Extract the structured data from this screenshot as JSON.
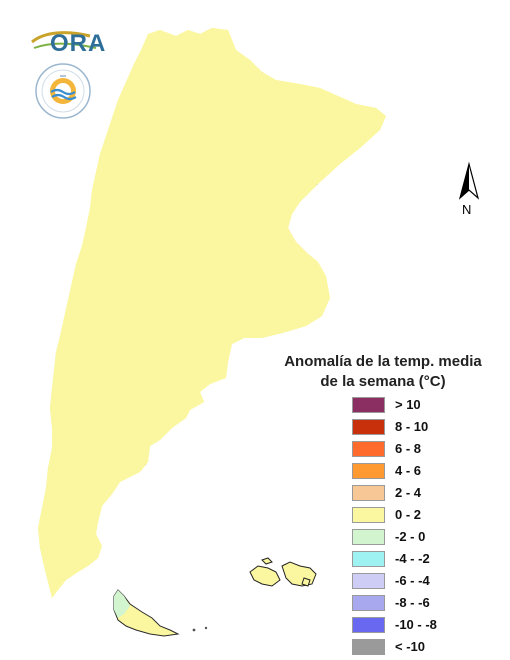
{
  "logos": {
    "ora_text": "ORA",
    "seal_name": "smn-seal"
  },
  "north_arrow": {
    "letter": "N",
    "icon": "north-arrow-icon"
  },
  "legend": {
    "title_line1": "Anomalía de la temp. media",
    "title_line2": "de la semana (°C)",
    "items": [
      {
        "label": "> 10",
        "color": "#8b2f62"
      },
      {
        "label": "8 - 10",
        "color": "#c8300c"
      },
      {
        "label": "6 - 8",
        "color": "#ff6a2d"
      },
      {
        "label": "4 - 6",
        "color": "#ff9a33"
      },
      {
        "label": "2 - 4",
        "color": "#f7c896"
      },
      {
        "label": "0 - 2",
        "color": "#fbf7a0"
      },
      {
        "label": "-2 - 0",
        "color": "#d2f5cf"
      },
      {
        "label": "-4 - -2",
        "color": "#9ff2f2"
      },
      {
        "label": "-6 - -4",
        "color": "#cdcdf5"
      },
      {
        "label": "-8 - -6",
        "color": "#a8a8ee"
      },
      {
        "label": "-10 - -8",
        "color": "#6868f0"
      },
      {
        "label": "< -10",
        "color": "#9a9a9a"
      }
    ]
  },
  "map": {
    "colors": {
      "base": "#fbf7a0",
      "cool": "#d2f5cf",
      "warm": "#f7c896",
      "border": "#2a2a2a"
    }
  }
}
